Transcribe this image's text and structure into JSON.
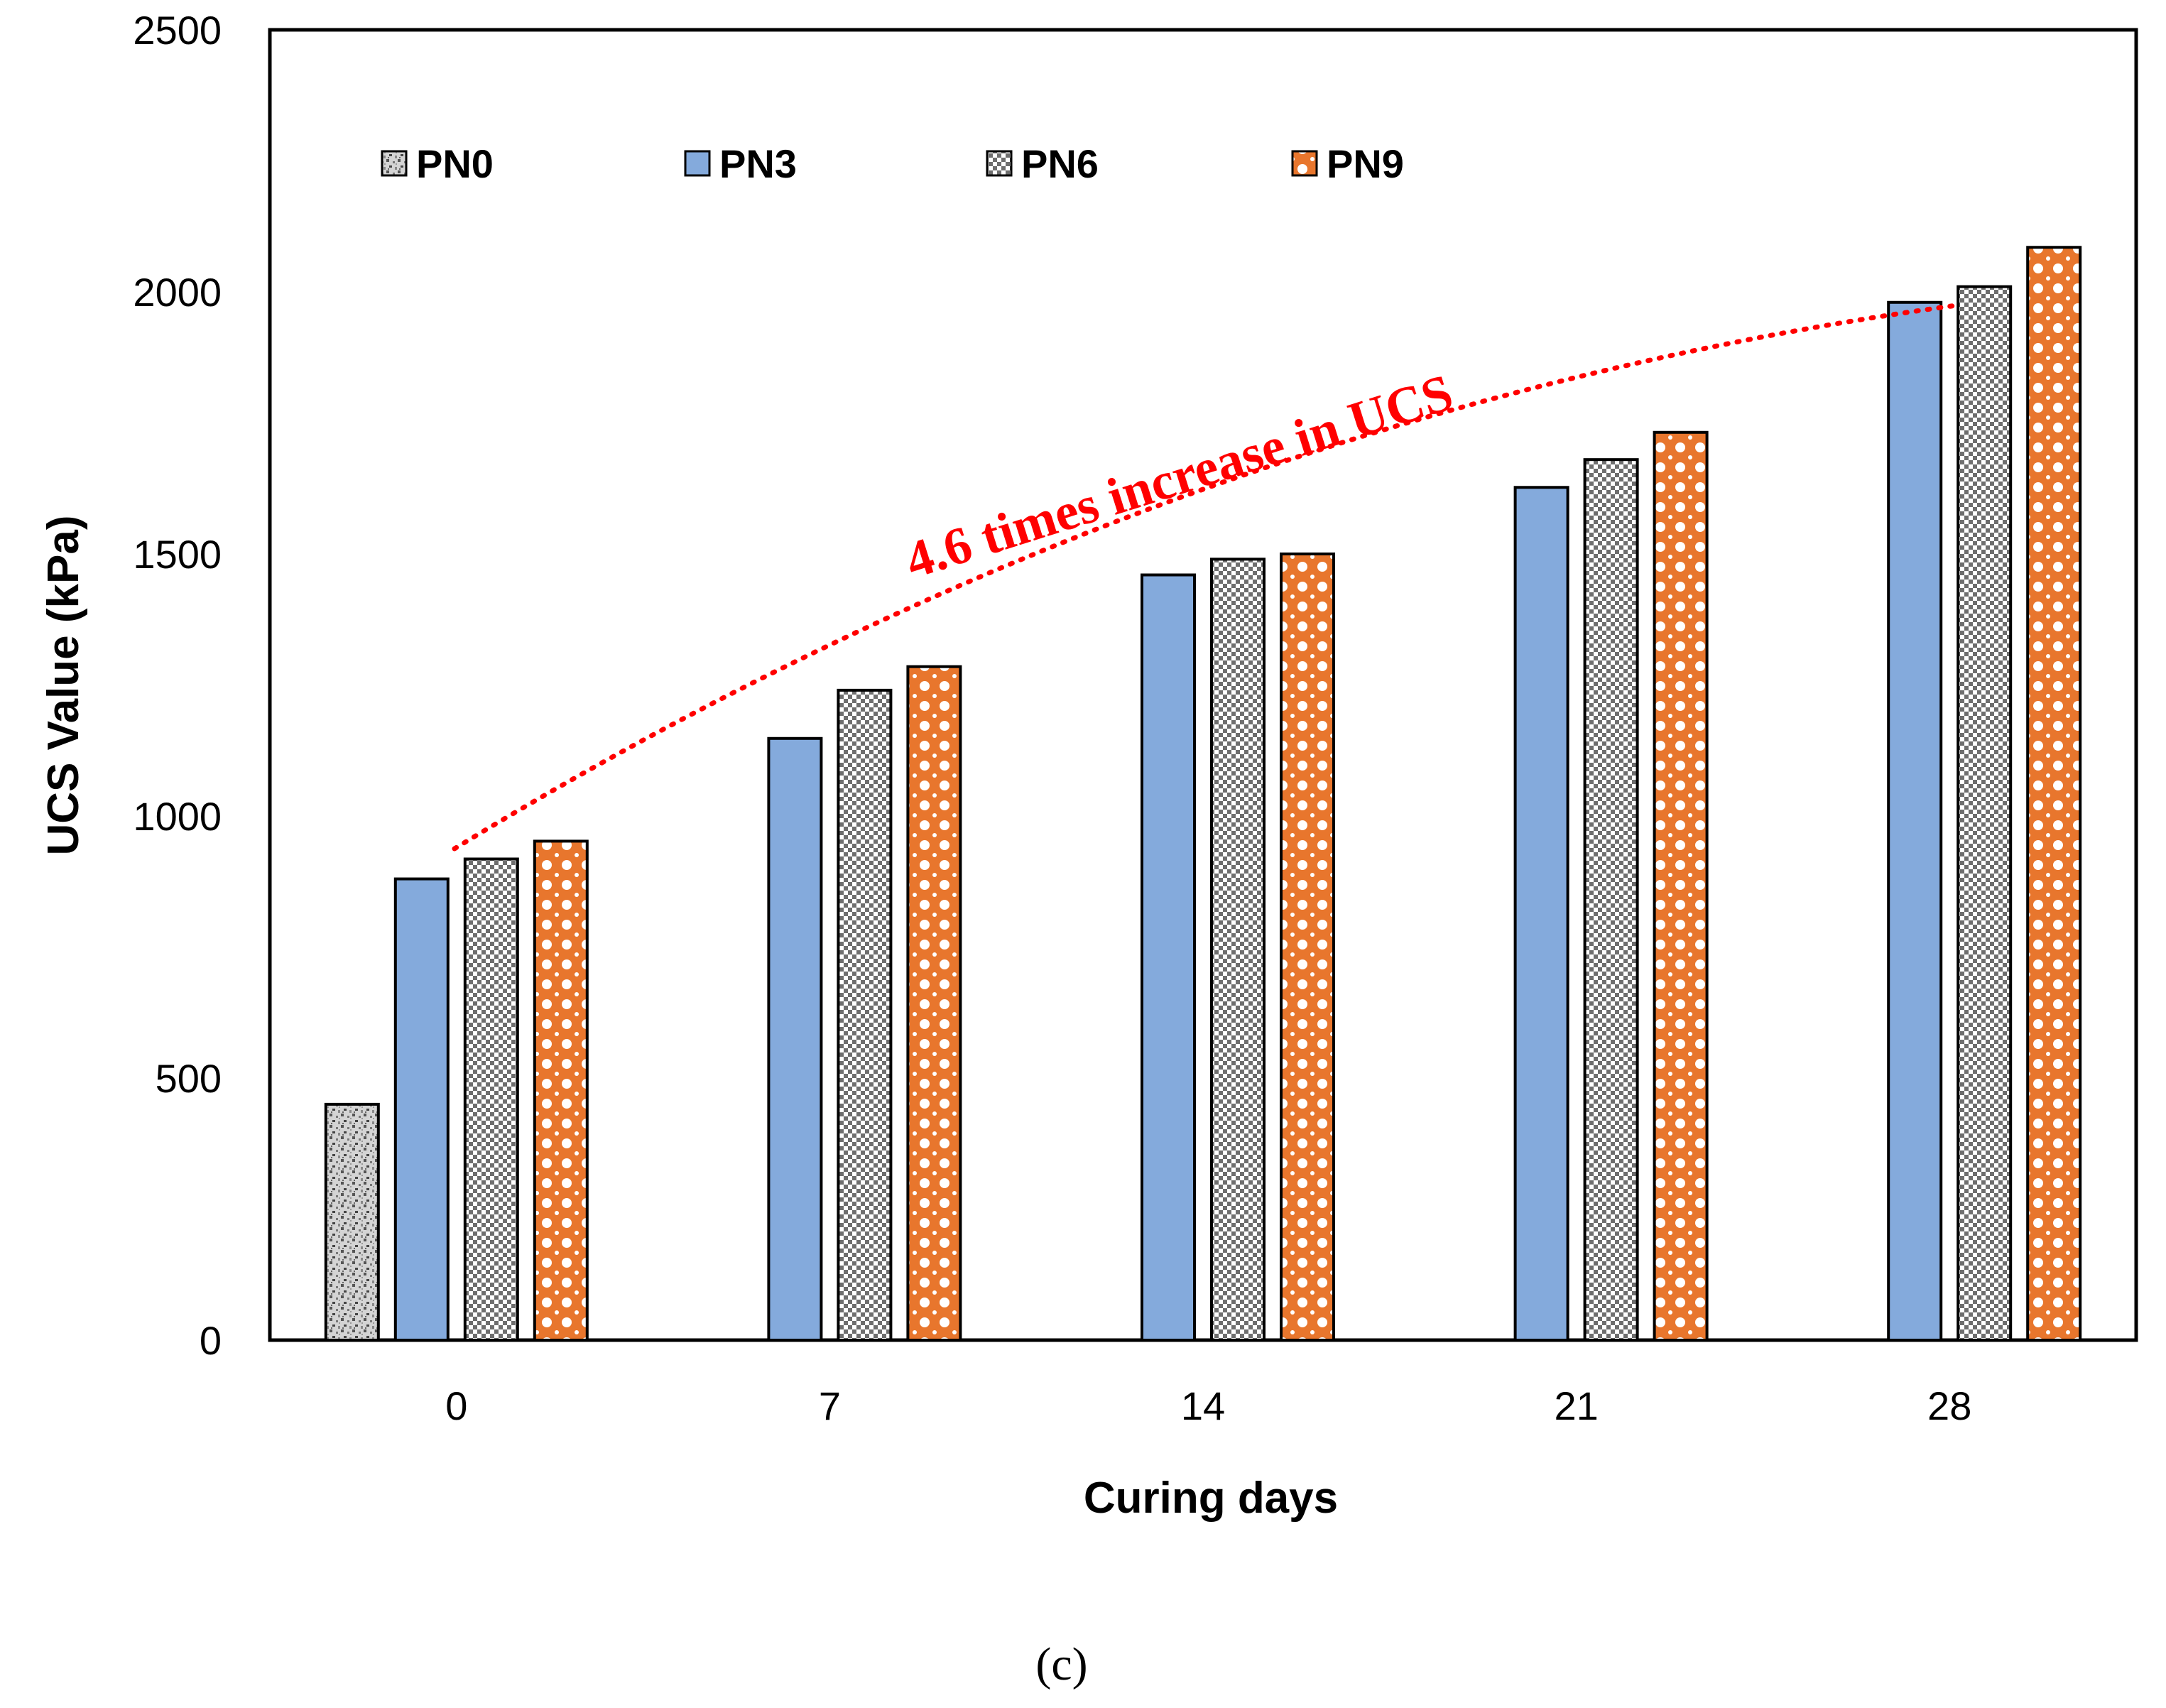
{
  "chart_data": {
    "type": "bar",
    "categories": [
      "0",
      "7",
      "14",
      "21",
      "28"
    ],
    "series": [
      {
        "name": "PN0",
        "values": [
          450,
          null,
          null,
          null,
          null
        ]
      },
      {
        "name": "PN3",
        "values": [
          880,
          1148,
          1460,
          1627,
          1980
        ]
      },
      {
        "name": "PN6",
        "values": [
          918,
          1240,
          1490,
          1680,
          2010
        ]
      },
      {
        "name": "PN9",
        "values": [
          952,
          1285,
          1500,
          1732,
          2085
        ]
      }
    ],
    "xlabel": "Curing days",
    "ylabel": "UCS Value (kPa)",
    "ylim": [
      0,
      2500
    ],
    "yticks": [
      "0",
      "500",
      "1000",
      "1500",
      "2000",
      "2500"
    ],
    "legend_position": "top-left",
    "annotation": "4.6 times increase in UCS",
    "caption": "(c)",
    "colors": {
      "PN0": "#9a9a9a",
      "PN3": "#84aadc",
      "PN6": "#8c8c8c",
      "PN9": "#e8762d",
      "annotation": "#ff0000"
    }
  }
}
